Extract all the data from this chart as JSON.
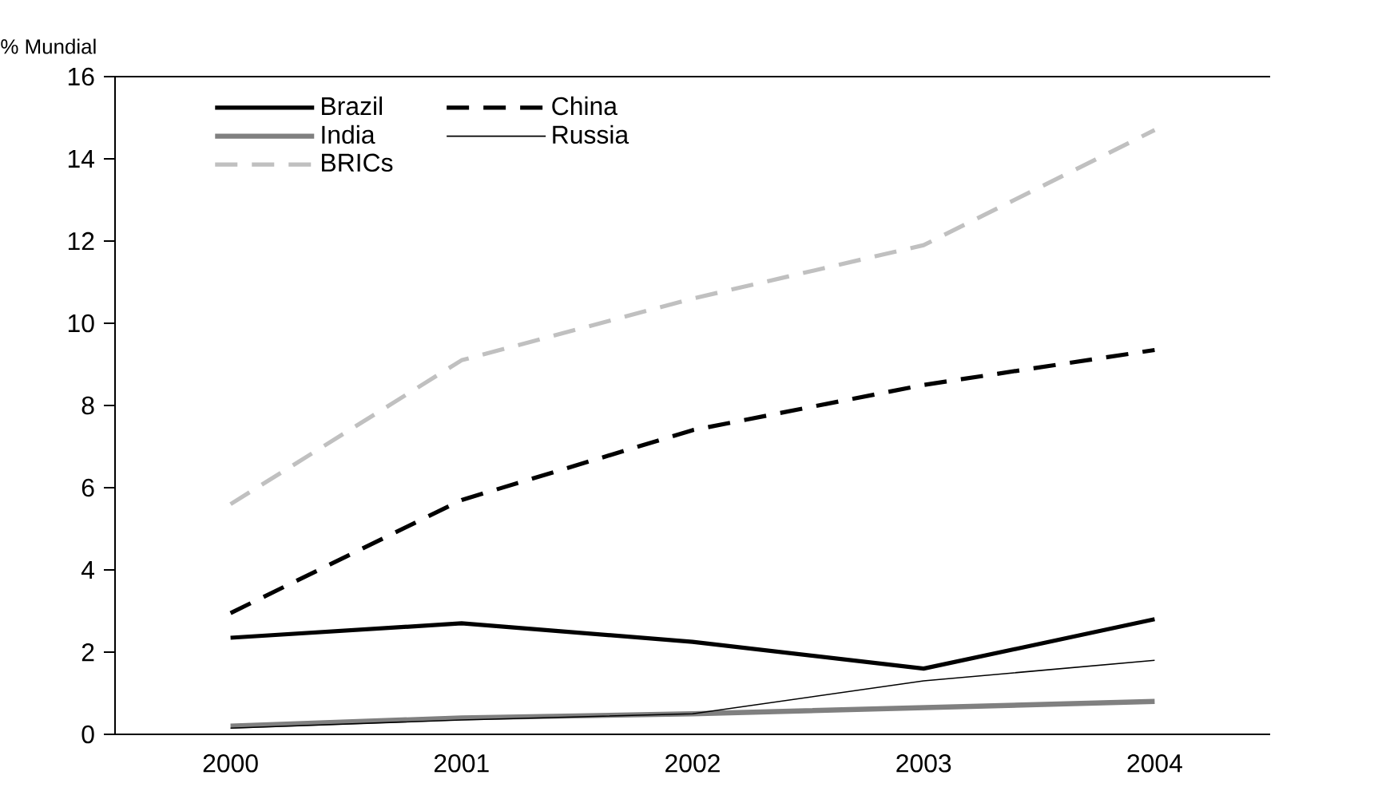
{
  "chart_data": {
    "type": "line",
    "ylabel": "% Mundial",
    "categories": [
      "2000",
      "2001",
      "2002",
      "2003",
      "2004"
    ],
    "series": [
      {
        "name": "Brazil",
        "color": "#000000",
        "line_style": "solid",
        "values": [
          2.35,
          2.7,
          2.25,
          1.6,
          2.8
        ]
      },
      {
        "name": "China",
        "color": "#000000",
        "line_style": "dashed",
        "values": [
          2.95,
          5.7,
          7.4,
          8.5,
          9.35
        ]
      },
      {
        "name": "India",
        "color": "#808080",
        "line_style": "solid",
        "values": [
          0.2,
          0.4,
          0.5,
          0.65,
          0.8
        ]
      },
      {
        "name": "Russia",
        "color": "#000000",
        "line_style": "solid",
        "values": [
          0.15,
          0.35,
          0.5,
          1.3,
          1.8
        ]
      },
      {
        "name": "BRICs",
        "color": "#c0c0c0",
        "line_style": "dashed",
        "values": [
          5.6,
          9.1,
          10.6,
          11.9,
          14.7
        ]
      }
    ],
    "ylim": [
      0,
      16
    ],
    "yticks": [
      0,
      2,
      4,
      6,
      8,
      10,
      12,
      14,
      16
    ],
    "grid": false,
    "legend": "top left",
    "marker": "none"
  }
}
